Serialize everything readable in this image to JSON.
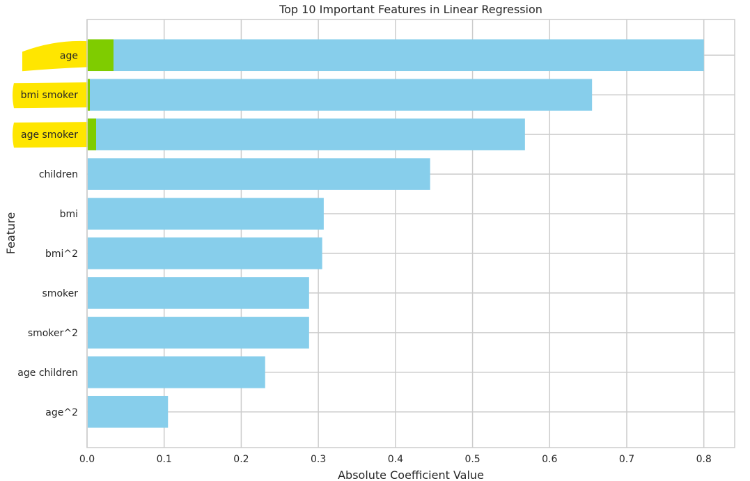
{
  "chart_data": {
    "type": "bar",
    "orientation": "horizontal",
    "title": "Top 10 Important Features in Linear Regression",
    "xlabel": "Absolute Coefficient Value",
    "ylabel": "Feature",
    "categories": [
      "age",
      "bmi smoker",
      "age smoker",
      "children",
      "bmi",
      "bmi^2",
      "smoker",
      "smoker^2",
      "age children",
      "age^2"
    ],
    "values": [
      0.8,
      0.655,
      0.568,
      0.445,
      0.307,
      0.305,
      0.288,
      0.288,
      0.231,
      0.105
    ],
    "xlim": [
      0,
      0.84
    ],
    "xticks": [
      "0.0",
      "0.1",
      "0.2",
      "0.3",
      "0.4",
      "0.5",
      "0.6",
      "0.7",
      "0.8"
    ],
    "grid": true,
    "colors": {
      "bar": "#87ceeb",
      "grid": "#cccccc",
      "frame": "#cccccc",
      "highlight": "#ffe600",
      "highlight_overlap": "#7fcc00"
    },
    "highlighted_categories": [
      "age",
      "bmi smoker",
      "age smoker"
    ]
  }
}
